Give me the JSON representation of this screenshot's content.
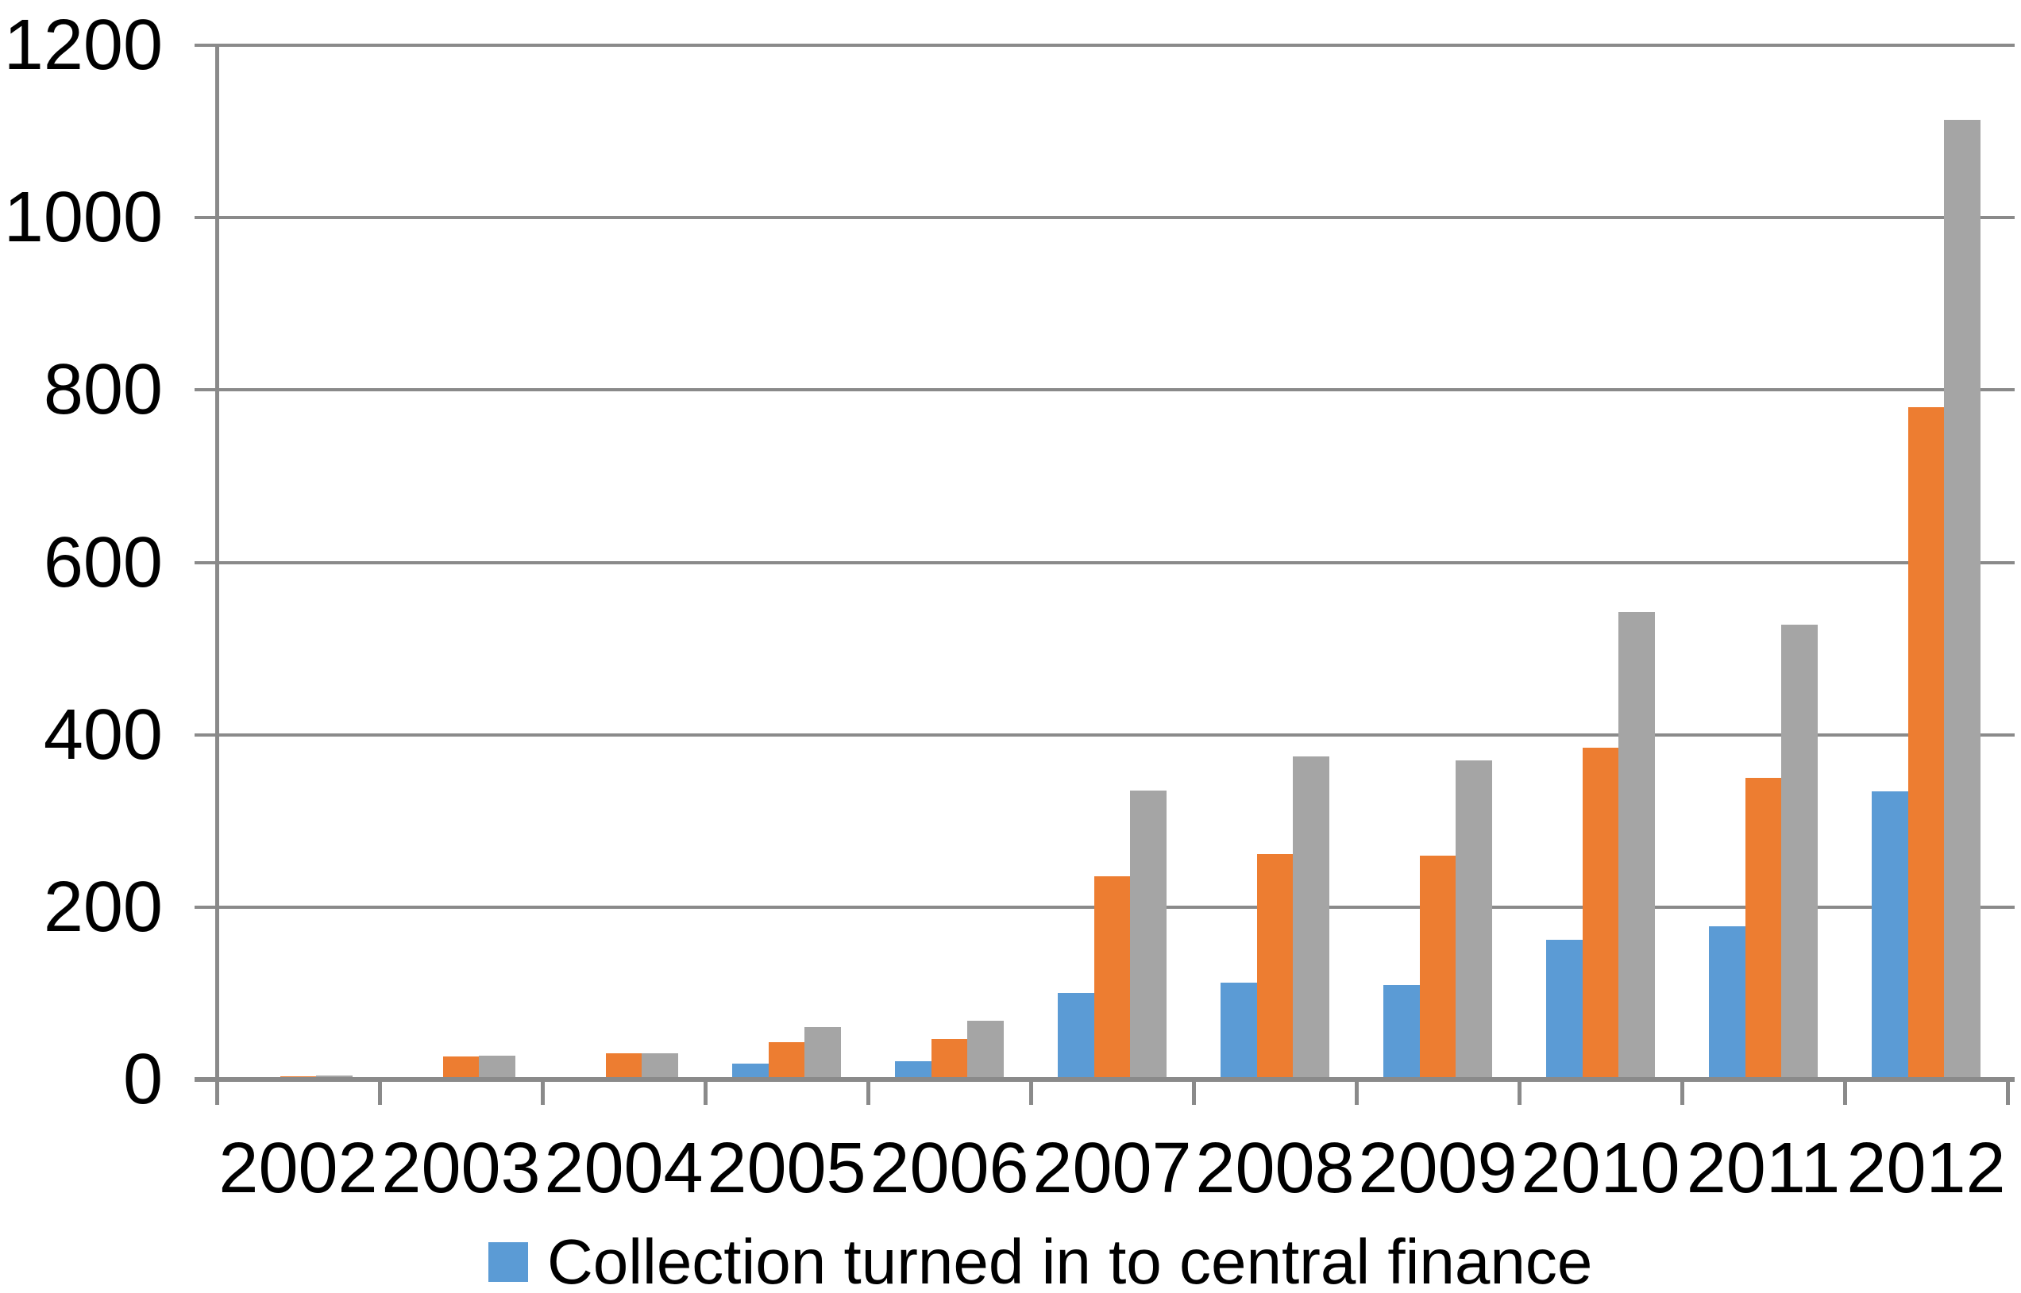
{
  "chart_data": {
    "type": "bar",
    "title": "",
    "xlabel": "",
    "ylabel": "",
    "categories": [
      "2002",
      "2003",
      "2004",
      "2005",
      "2006",
      "2007",
      "2008",
      "2009",
      "2010",
      "2011",
      "2012"
    ],
    "series": [
      {
        "name": "Collection turned in to central finance",
        "color": "#5B9BD5",
        "values": [
          0,
          0,
          0,
          18,
          21,
          100,
          112,
          110,
          162,
          178,
          334
        ]
      },
      {
        "name": "",
        "color": "#ED7D31",
        "values": [
          4,
          27,
          30,
          43,
          47,
          236,
          262,
          260,
          385,
          350,
          780
        ]
      },
      {
        "name": "",
        "color": "#A5A5A5",
        "values": [
          5,
          28,
          30,
          61,
          68,
          335,
          375,
          370,
          542,
          528,
          1113
        ]
      }
    ],
    "ylim": [
      0,
      1200
    ],
    "y_ticks": [
      0,
      200,
      400,
      600,
      800,
      1000,
      1200
    ],
    "grid": true,
    "legend_position": "bottom"
  },
  "legend": {
    "items": [
      {
        "label": "Collection turned in to central finance",
        "swatch_color": "#5B9BD5"
      }
    ]
  },
  "axis": {
    "line_color": "#8a8a8a",
    "text_color": "#000000"
  }
}
